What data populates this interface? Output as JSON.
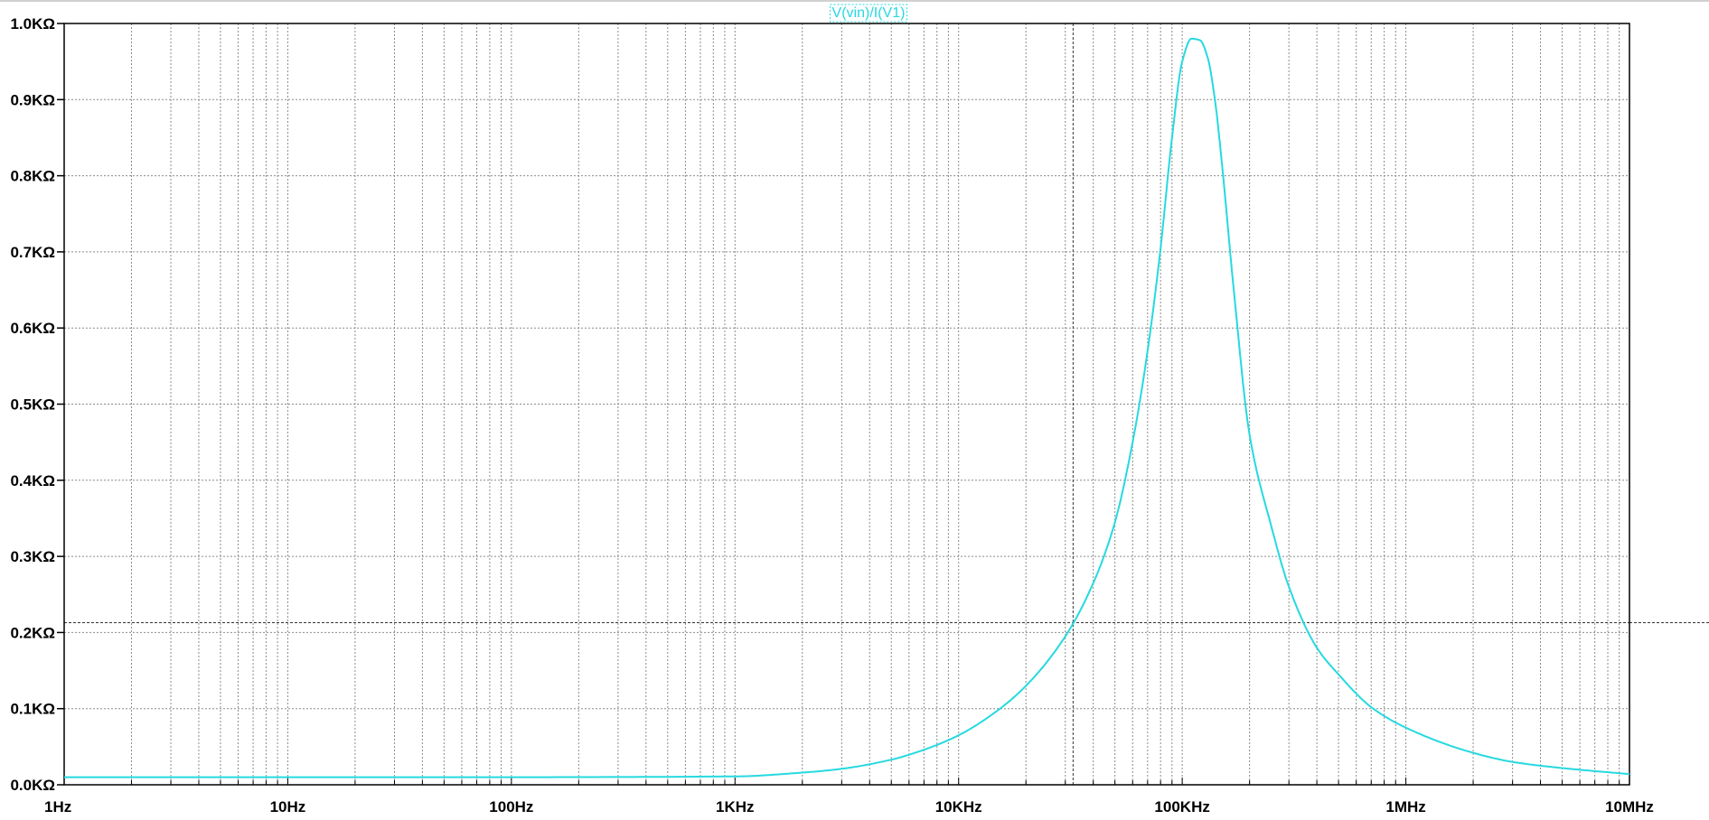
{
  "chart_data": {
    "type": "line",
    "title": "",
    "trace_label": "V(vin)/I(V1)",
    "x_scale": "log",
    "xlim": [
      1,
      10000000
    ],
    "ylim": [
      0,
      1000
    ],
    "y_unit": "Ω",
    "x_unit": "Hz",
    "grid": true,
    "x_tick_labels": [
      "1Hz",
      "10Hz",
      "100Hz",
      "1KHz",
      "10KHz",
      "100KHz",
      "1MHz",
      "10MHz"
    ],
    "x_tick_values": [
      1,
      10,
      100,
      1000,
      10000,
      100000,
      1000000,
      10000000
    ],
    "y_tick_labels": [
      "0.0KΩ",
      "0.1KΩ",
      "0.2KΩ",
      "0.3KΩ",
      "0.4KΩ",
      "0.5KΩ",
      "0.6KΩ",
      "0.7KΩ",
      "0.8KΩ",
      "0.9KΩ",
      "1.0KΩ"
    ],
    "y_tick_values": [
      0,
      100,
      200,
      300,
      400,
      500,
      600,
      700,
      800,
      900,
      1000
    ],
    "series": [
      {
        "color": "#26d9e0",
        "x": [
          1,
          10,
          100,
          1000,
          2000,
          3000,
          5000,
          7000,
          10000,
          15000,
          20000,
          30000,
          40000,
          50000,
          60000,
          70000,
          80000,
          90000,
          100000,
          110000,
          120000,
          130000,
          140000,
          150000,
          170000,
          200000,
          250000,
          300000,
          400000,
          500000,
          700000,
          1000000,
          2000000,
          3000000,
          5000000,
          10000000
        ],
        "y": [
          10,
          10,
          10,
          11,
          16,
          21,
          33,
          46,
          65,
          98,
          130,
          195,
          265,
          345,
          450,
          570,
          705,
          850,
          950,
          980,
          978,
          955,
          900,
          820,
          650,
          460,
          340,
          260,
          180,
          145,
          102,
          75,
          42,
          30,
          22,
          14
        ]
      }
    ],
    "cursors": {
      "x": 32500,
      "y": 213
    }
  },
  "colors": {
    "background": "#ffffff",
    "trace": "#26d9e0",
    "grid": "#8c8c8c",
    "axis": "#000000"
  }
}
